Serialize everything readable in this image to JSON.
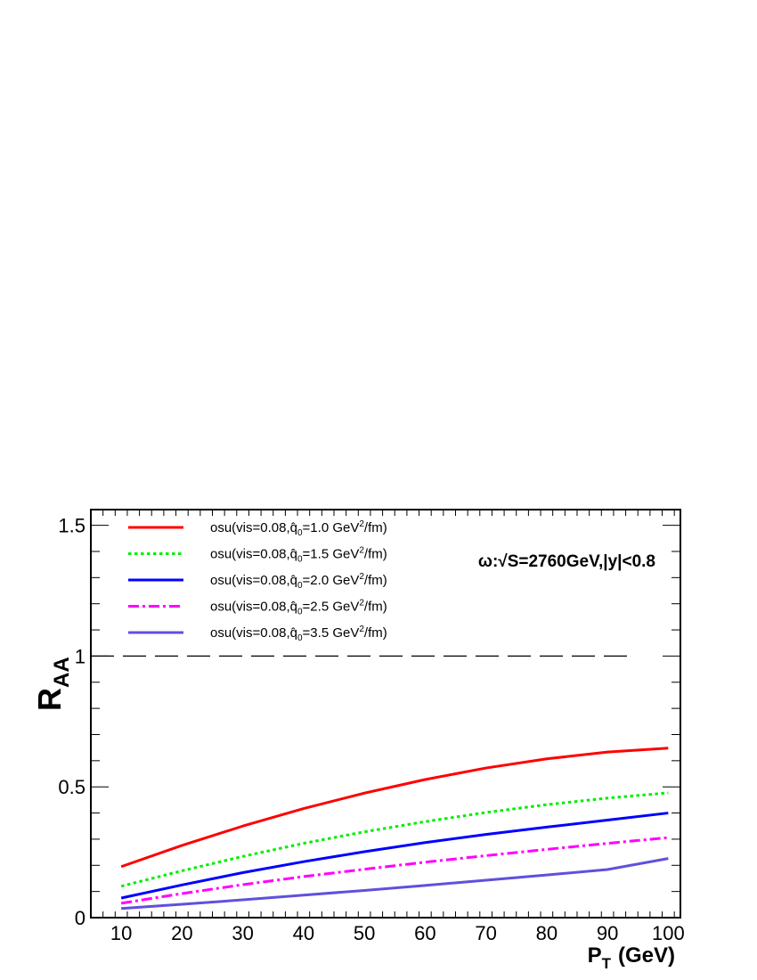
{
  "chart_data": {
    "type": "line",
    "xlabel": "P",
    "xlabel_sub": "T",
    "xlabel_unit": "(GeV)",
    "ylabel": "R",
    "ylabel_sub": "AA",
    "annotation": "ω:√S=2760GeV,|y|<0.8",
    "xlim": [
      5,
      102
    ],
    "ylim": [
      0,
      1.56
    ],
    "x_ticks": [
      10,
      20,
      30,
      40,
      50,
      60,
      70,
      80,
      90,
      100
    ],
    "y_ticks": [
      0,
      0.5,
      1,
      1.5
    ],
    "y_tick_labels": [
      "0",
      "0.5",
      "1",
      "1.5"
    ],
    "reference_line": {
      "y": 1,
      "style": "dashed"
    },
    "legend_position": "top-left",
    "x": [
      10,
      20,
      30,
      40,
      50,
      60,
      70,
      80,
      90,
      100
    ],
    "series": [
      {
        "name": "osu(vis=0.08,q̂0=1.0 GeV2/fm)",
        "prefix": "osu(vis=0.08,",
        "qhat": "q̂",
        "qsub": "0",
        "value": "=1.0 GeV",
        "sup": "2",
        "suffix": "/fm)",
        "color": "#ff0000",
        "dash": "solid",
        "values": [
          0.195,
          0.276,
          0.35,
          0.417,
          0.476,
          0.528,
          0.572,
          0.607,
          0.633,
          0.648
        ]
      },
      {
        "name": "osu(vis=0.08,q̂0=1.5 GeV2/fm)",
        "prefix": "osu(vis=0.08,",
        "qhat": "q̂",
        "qsub": "0",
        "value": "=1.5 GeV",
        "sup": "2",
        "suffix": "/fm)",
        "color": "#00ee00",
        "dash": "dotted",
        "values": [
          0.12,
          0.179,
          0.234,
          0.284,
          0.328,
          0.367,
          0.402,
          0.432,
          0.457,
          0.477
        ]
      },
      {
        "name": "osu(vis=0.08,q̂0=2.0 GeV2/fm)",
        "prefix": "osu(vis=0.08,",
        "qhat": "q̂",
        "qsub": "0",
        "value": "=2.0 GeV",
        "sup": "2",
        "suffix": "/fm)",
        "color": "#0000ff",
        "dash": "solid",
        "values": [
          0.075,
          0.125,
          0.172,
          0.214,
          0.252,
          0.287,
          0.318,
          0.346,
          0.373,
          0.4
        ]
      },
      {
        "name": "osu(vis=0.08,q̂0=2.5 GeV2/fm)",
        "prefix": "osu(vis=0.08,",
        "qhat": "q̂",
        "qsub": "0",
        "value": "=2.5 GeV",
        "sup": "2",
        "suffix": "/fm)",
        "color": "#ff00ff",
        "dash": "dashdot",
        "values": [
          0.055,
          0.092,
          0.126,
          0.157,
          0.185,
          0.212,
          0.237,
          0.261,
          0.284,
          0.306
        ]
      },
      {
        "name": "osu(vis=0.08,q̂0=3.5 GeV2/fm)",
        "prefix": "osu(vis=0.08,",
        "qhat": "q̂",
        "qsub": "0",
        "value": "=3.5 GeV",
        "sup": "2",
        "suffix": "/fm)",
        "color": "#6050dd",
        "dash": "solid",
        "values": [
          0.035,
          0.051,
          0.068,
          0.086,
          0.104,
          0.123,
          0.143,
          0.163,
          0.184,
          0.226
        ]
      }
    ]
  }
}
